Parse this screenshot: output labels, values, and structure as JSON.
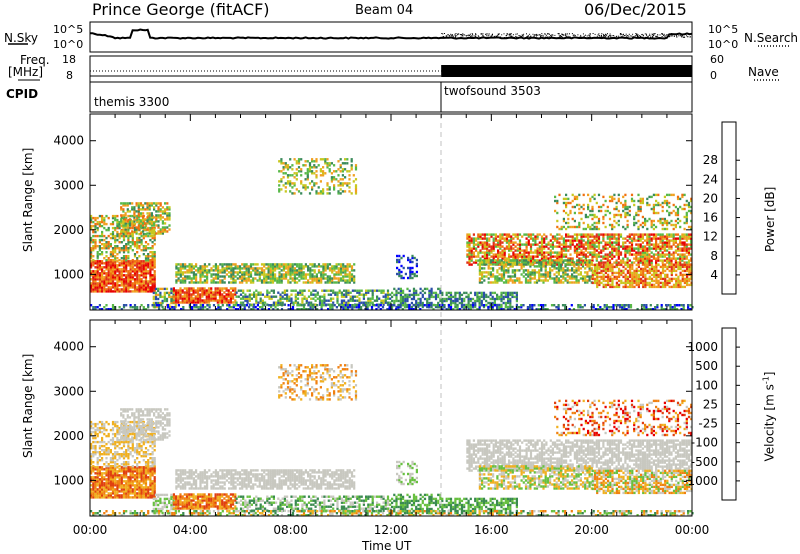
{
  "header": {
    "site": "Prince George (fitACF)",
    "beam": "Beam 04",
    "date": "06/Dec/2015"
  },
  "summary": {
    "nsky_label": "N.Sky",
    "nsky_ticks": [
      "10^5",
      "10^0"
    ],
    "nsearch_label": "N.Search",
    "nsearch_ticks": [
      "10^5",
      "10^0"
    ],
    "freq_label": "Freq.",
    "freq_unit": "[MHz]",
    "freq_ticks": [
      "18",
      "8"
    ],
    "nave_label": "Nave",
    "nave_ticks": [
      "60",
      "0"
    ],
    "cpid_label": "CPID",
    "cpid_modes": [
      {
        "name": "themis 3300",
        "start_hour": 0
      },
      {
        "name": "twofsound 3503",
        "start_hour": 14
      }
    ]
  },
  "chart_data": [
    {
      "type": "heatmap",
      "name": "power-panel",
      "xlabel": "",
      "ylabel": "Slant Range [km]",
      "x_range_hours": [
        0,
        24
      ],
      "ylim": [
        200,
        4600
      ],
      "y_ticks": [
        "1000",
        "2000",
        "3000",
        "4000"
      ],
      "colorbar_label": "Power [dB]",
      "colorbar_ticks": [
        "4",
        "8",
        "12",
        "16",
        "20",
        "24",
        "28"
      ],
      "colorbar_colors": [
        "#0000ff",
        "#2b4fa8",
        "#3a8a5a",
        "#58b848",
        "#c8c820",
        "#f0a020",
        "#f07010",
        "#e03018",
        "#e80000"
      ]
    },
    {
      "type": "heatmap",
      "name": "velocity-panel",
      "xlabel": "Time UT",
      "ylabel": "Slant Range [km]",
      "x_range_hours": [
        0,
        24
      ],
      "x_ticks": [
        "00:00",
        "04:00",
        "08:00",
        "12:00",
        "16:00",
        "20:00",
        "00:00"
      ],
      "ylim": [
        200,
        4600
      ],
      "y_ticks": [
        "1000",
        "2000",
        "3000",
        "4000"
      ],
      "colorbar_label": "Velocity [m s",
      "colorbar_label_sup": "-1",
      "colorbar_label_end": "]",
      "colorbar_ticks": [
        "1000",
        "500",
        "100",
        "25",
        "-25",
        "-100",
        "-500",
        "-1000"
      ],
      "colorbar_colors": [
        "#1a3cc8",
        "#2858a8",
        "#3a8a50",
        "#68c040",
        "#c8c8c0",
        "#f0b020",
        "#f08010",
        "#e04010",
        "#e80000"
      ]
    }
  ]
}
